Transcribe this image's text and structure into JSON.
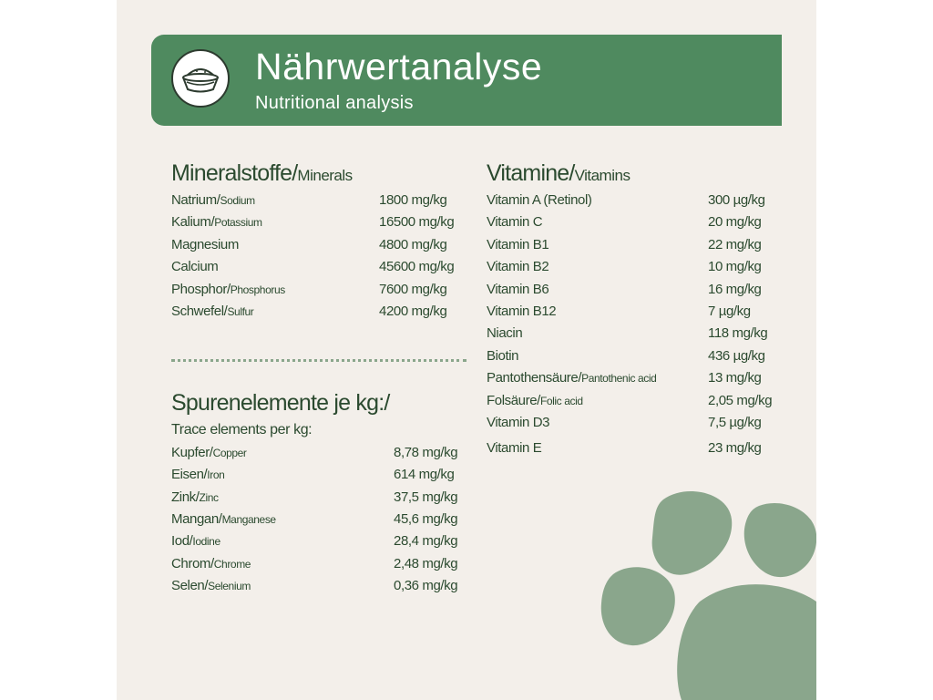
{
  "header": {
    "title": "Nährwertanalyse",
    "subtitle": "Nutritional analysis",
    "icon": "food-bowl-icon"
  },
  "minerals": {
    "title_de": "Mineralstoffe/",
    "title_en": "Minerals",
    "items": [
      {
        "de": "Natrium/",
        "en": "Sodium",
        "value": "1800 mg/kg"
      },
      {
        "de": "Kalium/",
        "en": "Potassium",
        "value": "16500 mg/kg"
      },
      {
        "de": "Magnesium",
        "en": "",
        "value": "4800 mg/kg"
      },
      {
        "de": "Calcium",
        "en": "",
        "value": "45600 mg/kg"
      },
      {
        "de": "Phosphor/",
        "en": "Phosphorus",
        "value": "7600 mg/kg"
      },
      {
        "de": "Schwefel/",
        "en": "Sulfur",
        "value": "4200 mg/kg"
      }
    ]
  },
  "trace": {
    "title": "Spurenelemente je kg:/",
    "subtitle": "Trace elements per kg:",
    "items": [
      {
        "de": "Kupfer/",
        "en": "Copper",
        "value": "8,78 mg/kg"
      },
      {
        "de": "Eisen/",
        "en": "Iron",
        "value": "614 mg/kg"
      },
      {
        "de": "Zink/",
        "en": "Zinc",
        "value": "37,5 mg/kg"
      },
      {
        "de": "Mangan/",
        "en": "Manganese",
        "value": "45,6 mg/kg"
      },
      {
        "de": "Iod/",
        "en": "Iodine",
        "value": "28,4 mg/kg"
      },
      {
        "de": "Chrom/",
        "en": "Chrome",
        "value": "2,48 mg/kg"
      },
      {
        "de": "Selen/",
        "en": "Selenium",
        "value": "0,36 mg/kg"
      }
    ]
  },
  "vitamins": {
    "title_de": "Vitamine/",
    "title_en": "Vitamins",
    "items": [
      {
        "de": "Vitamin A (Retinol)",
        "en": "",
        "value": "300 µg/kg"
      },
      {
        "de": "Vitamin C",
        "en": "",
        "value": "20 mg/kg"
      },
      {
        "de": "Vitamin B1",
        "en": "",
        "value": "22 mg/kg"
      },
      {
        "de": "Vitamin B2",
        "en": "",
        "value": "10 mg/kg"
      },
      {
        "de": "Vitamin B6",
        "en": "",
        "value": "16 mg/kg"
      },
      {
        "de": "Vitamin B12",
        "en": "",
        "value": "7 µg/kg"
      },
      {
        "de": "Niacin",
        "en": "",
        "value": "118 mg/kg"
      },
      {
        "de": "Biotin",
        "en": "",
        "value": "436 µg/kg"
      },
      {
        "de": "Pantothensäure/",
        "en": "Pantothenic acid",
        "value": "13 mg/kg"
      },
      {
        "de": "Folsäure/",
        "en": "Folic acid",
        "value": "2,05 mg/kg"
      },
      {
        "de": "Vitamin D3",
        "en": "",
        "value": "7,5 µg/kg"
      },
      {
        "de": "Vitamin E",
        "en": "",
        "value": "23 mg/kg"
      }
    ]
  },
  "colors": {
    "background": "#f3efea",
    "banner": "#4f8a5f",
    "text": "#2b4a2f",
    "paw": "#8aa68c"
  }
}
